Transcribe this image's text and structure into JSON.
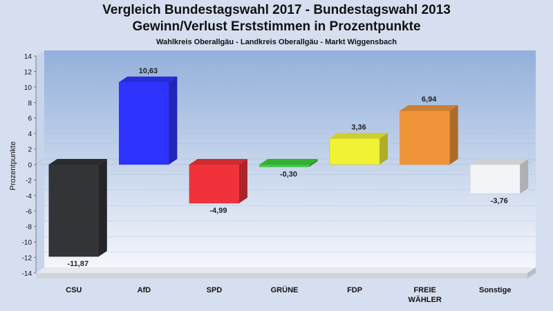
{
  "title": "Vergleich Bundestagswahl 2017 - Bundestagswahl 2013",
  "subtitle": "Gewinn/Verlust Erststimmen in Prozentpunkte",
  "subsubtitle": "Wahlkreis Oberallgäu - Landkreis Oberallgäu - Markt Wiggensbach",
  "chart_data": {
    "type": "bar",
    "title": "Vergleich Bundestagswahl 2017 - Bundestagswahl 2013",
    "ylabel": "Prozentpunkte",
    "xlabel": "",
    "ylim": [
      -14,
      14
    ],
    "yticks": [
      14,
      12,
      10,
      8,
      6,
      4,
      2,
      0,
      -2,
      -4,
      -6,
      -8,
      -10,
      -12,
      -14
    ],
    "grid": true,
    "categories": [
      "CSU",
      "AfD",
      "SPD",
      "GRÜNE",
      "FDP",
      "FREIE WÄHLER",
      "Sonstige"
    ],
    "category_lines": [
      [
        "CSU"
      ],
      [
        "AfD"
      ],
      [
        "SPD"
      ],
      [
        "GRÜNE"
      ],
      [
        "FDP"
      ],
      [
        "FREIE",
        "WÄHLER"
      ],
      [
        "Sonstige"
      ]
    ],
    "values": [
      -11.87,
      10.63,
      -4.99,
      -0.3,
      3.36,
      6.94,
      -3.76
    ],
    "value_labels": [
      "-11,87",
      "10,63",
      "-4,99",
      "-0,30",
      "3,36",
      "6,94",
      "-3,76"
    ],
    "colors": [
      "#333438",
      "#2e33ff",
      "#f2323a",
      "#3ccf3c",
      "#f2f235",
      "#f0943a",
      "#f2f4f8"
    ]
  }
}
